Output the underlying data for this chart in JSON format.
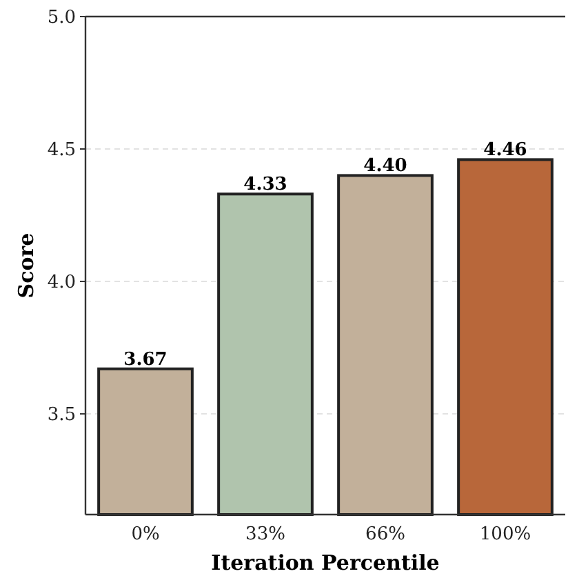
{
  "chart_data": {
    "type": "bar",
    "xlabel": "Iteration Percentile",
    "ylabel": "Score",
    "categories": [
      "0%",
      "33%",
      "66%",
      "100%"
    ],
    "values": [
      3.67,
      4.33,
      4.4,
      4.46
    ],
    "colors": [
      "#c2b09a",
      "#b0c4ad",
      "#c2b09a",
      "#b8673a"
    ],
    "value_labels": [
      "3.67",
      "4.33",
      "4.40",
      "4.46"
    ],
    "ylim": [
      3.12,
      5.0
    ],
    "yticks": [
      {
        "value": 3.5,
        "label": "3.5"
      },
      {
        "value": 4.0,
        "label": "4.0"
      },
      {
        "value": 4.5,
        "label": "4.5"
      },
      {
        "value": 5.0,
        "label": "5.0"
      }
    ],
    "grid": "y"
  }
}
